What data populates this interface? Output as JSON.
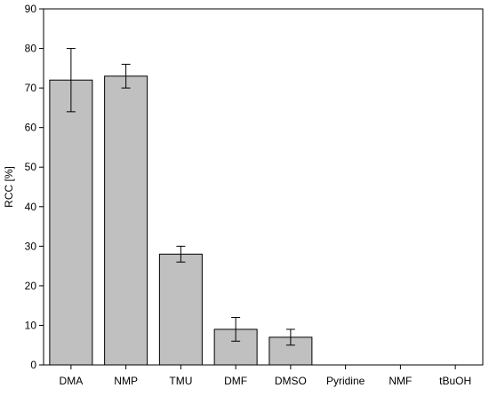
{
  "chart_data": {
    "type": "bar",
    "categories": [
      "DMA",
      "NMP",
      "TMU",
      "DMF",
      "DMSO",
      "Pyridine",
      "NMF",
      "tBuOH"
    ],
    "values": [
      72,
      73,
      28,
      9,
      7,
      0,
      0,
      0
    ],
    "error_low": [
      64,
      70,
      26,
      6,
      5,
      0,
      0,
      0
    ],
    "error_high": [
      80,
      76,
      30,
      12,
      9,
      0,
      0,
      0
    ],
    "title": "",
    "xlabel": "",
    "ylabel": "RCC [%]",
    "ylim": [
      0,
      90
    ],
    "yticks": [
      0,
      10,
      20,
      30,
      40,
      50,
      60,
      70,
      80,
      90
    ],
    "grid": false,
    "bar_color": "#c0c0c0",
    "edge_color": "#000000"
  }
}
